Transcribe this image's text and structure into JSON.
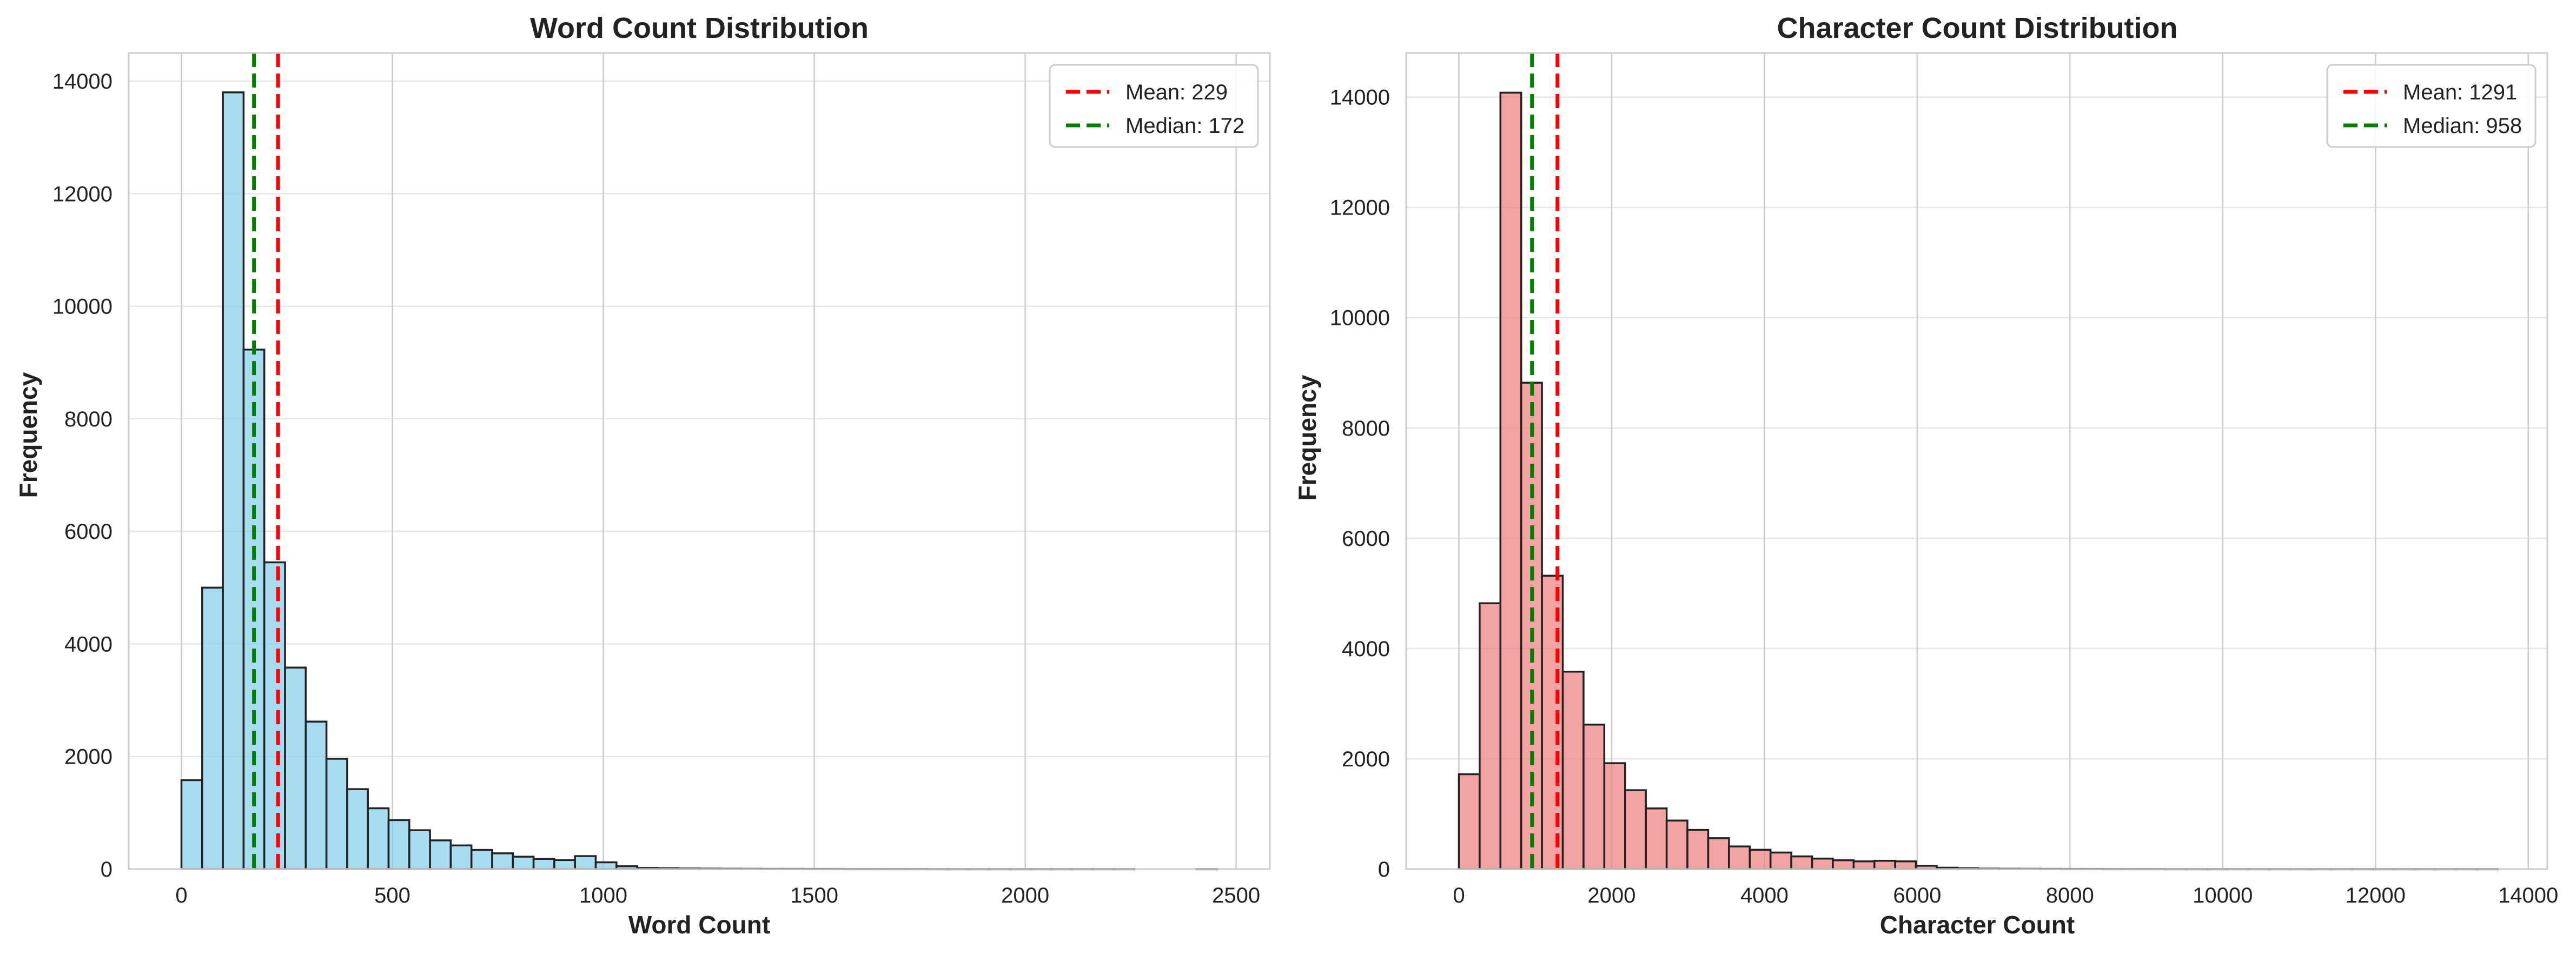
{
  "chart_data": [
    {
      "type": "bar",
      "subtype": "histogram",
      "title": "Word Count Distribution",
      "xlabel": "Word Count",
      "ylabel": "Frequency",
      "xlim": [
        -125,
        2580
      ],
      "ylim": [
        0,
        14500
      ],
      "xticks": [
        0,
        500,
        1000,
        1500,
        2000,
        2500
      ],
      "yticks": [
        0,
        2000,
        4000,
        6000,
        8000,
        10000,
        12000,
        14000
      ],
      "grid": true,
      "legend_position": "upper right",
      "bin_width": 49.1,
      "bin_start": 0,
      "values": [
        1580,
        5000,
        13800,
        9230,
        5450,
        3580,
        2620,
        1960,
        1420,
        1080,
        870,
        690,
        510,
        420,
        340,
        280,
        220,
        180,
        160,
        230,
        120,
        50,
        20,
        15,
        10,
        8,
        6,
        5,
        4,
        4,
        3,
        3,
        2,
        2,
        2,
        2,
        1,
        1,
        1,
        1,
        1,
        1,
        1,
        1,
        1,
        1,
        0,
        0,
        0,
        1
      ],
      "fill_color": "#87CEEB",
      "edge_color": "#222222",
      "reference_lines": [
        {
          "label": "Mean: 229",
          "value": 229,
          "color": "#ff0000"
        },
        {
          "label": "Median: 172",
          "value": 172,
          "color": "#008000"
        }
      ]
    },
    {
      "type": "bar",
      "subtype": "histogram",
      "title": "Character Count Distribution",
      "xlabel": "Character Count",
      "ylabel": "Frequency",
      "xlim": [
        -690,
        14250
      ],
      "ylim": [
        0,
        14800
      ],
      "xticks": [
        0,
        2000,
        4000,
        6000,
        8000,
        10000,
        12000,
        14000
      ],
      "yticks": [
        0,
        2000,
        4000,
        6000,
        8000,
        10000,
        12000,
        14000
      ],
      "grid": true,
      "legend_position": "upper right",
      "bin_width": 272,
      "bin_start": 0,
      "values": [
        1720,
        4820,
        14080,
        8820,
        5320,
        3580,
        2620,
        1920,
        1430,
        1100,
        880,
        710,
        560,
        410,
        350,
        300,
        230,
        190,
        160,
        140,
        150,
        140,
        60,
        25,
        15,
        8,
        6,
        5,
        4,
        3,
        3,
        2,
        2,
        2,
        1,
        1,
        1,
        1,
        1,
        1,
        1,
        1,
        1,
        1,
        1,
        1,
        1,
        1,
        1,
        1
      ],
      "fill_color": "#F08080",
      "edge_color": "#222222",
      "reference_lines": [
        {
          "label": "Mean: 1291",
          "value": 1291,
          "color": "#ff0000"
        },
        {
          "label": "Median: 958",
          "value": 958,
          "color": "#008000"
        }
      ]
    }
  ]
}
